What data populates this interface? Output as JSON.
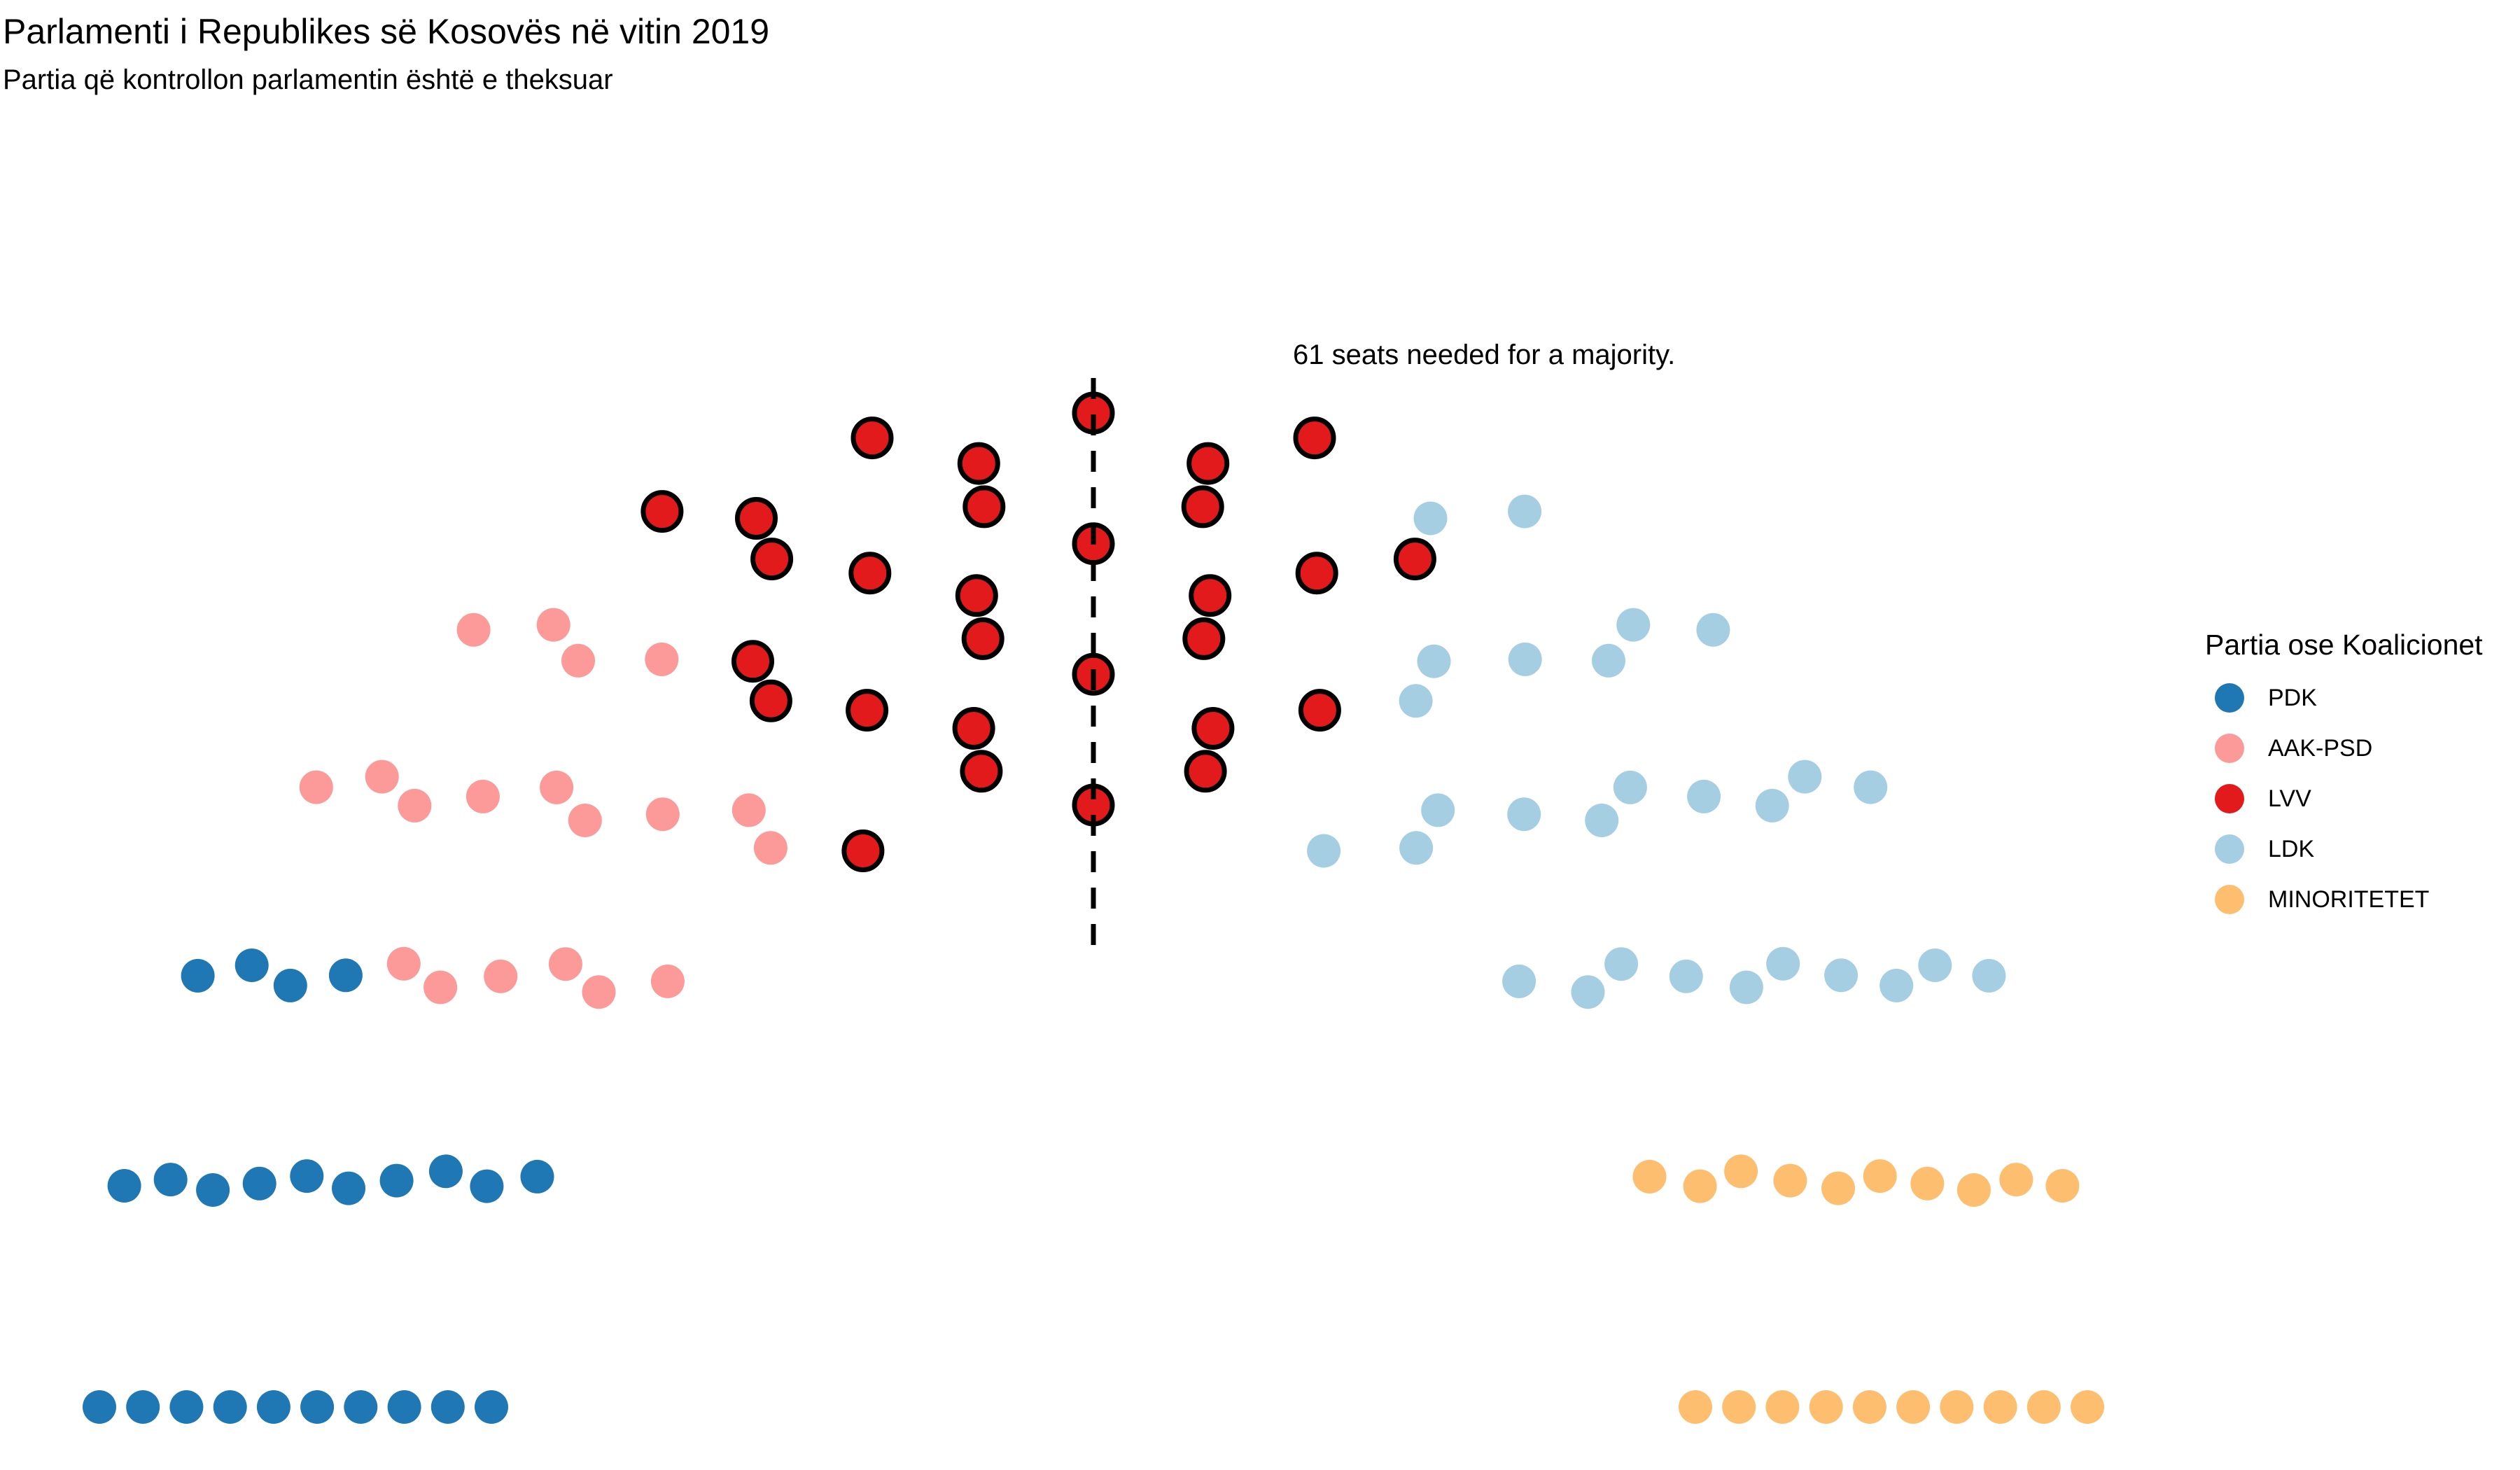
{
  "chart_data": {
    "type": "parliament",
    "title": "Parlamenti i Republikes së Kosovës në vitin 2019",
    "subtitle": "Partia që kontrollon parlamentin është e theksuar",
    "total_seats": 120,
    "majority_threshold": 61,
    "annotation": "61 seats needed for a majority.",
    "legend_title": "Partia ose Koalicionet",
    "legend_position": "right",
    "highlighted_party": "LVV",
    "parties": [
      {
        "name": "PDK",
        "seats": 24,
        "color": "#1F78B4",
        "highlighted": false
      },
      {
        "name": "AAK-PSD",
        "seats": 19,
        "color": "#FB9A99",
        "highlighted": false
      },
      {
        "name": "LVV",
        "seats": 29,
        "color": "#E31A1C",
        "highlighted": true
      },
      {
        "name": "LDK",
        "seats": 28,
        "color": "#A6CEE3",
        "highlighted": false
      },
      {
        "name": "MINORITETET",
        "seats": 20,
        "color": "#FDBF6F",
        "highlighted": false
      }
    ]
  }
}
